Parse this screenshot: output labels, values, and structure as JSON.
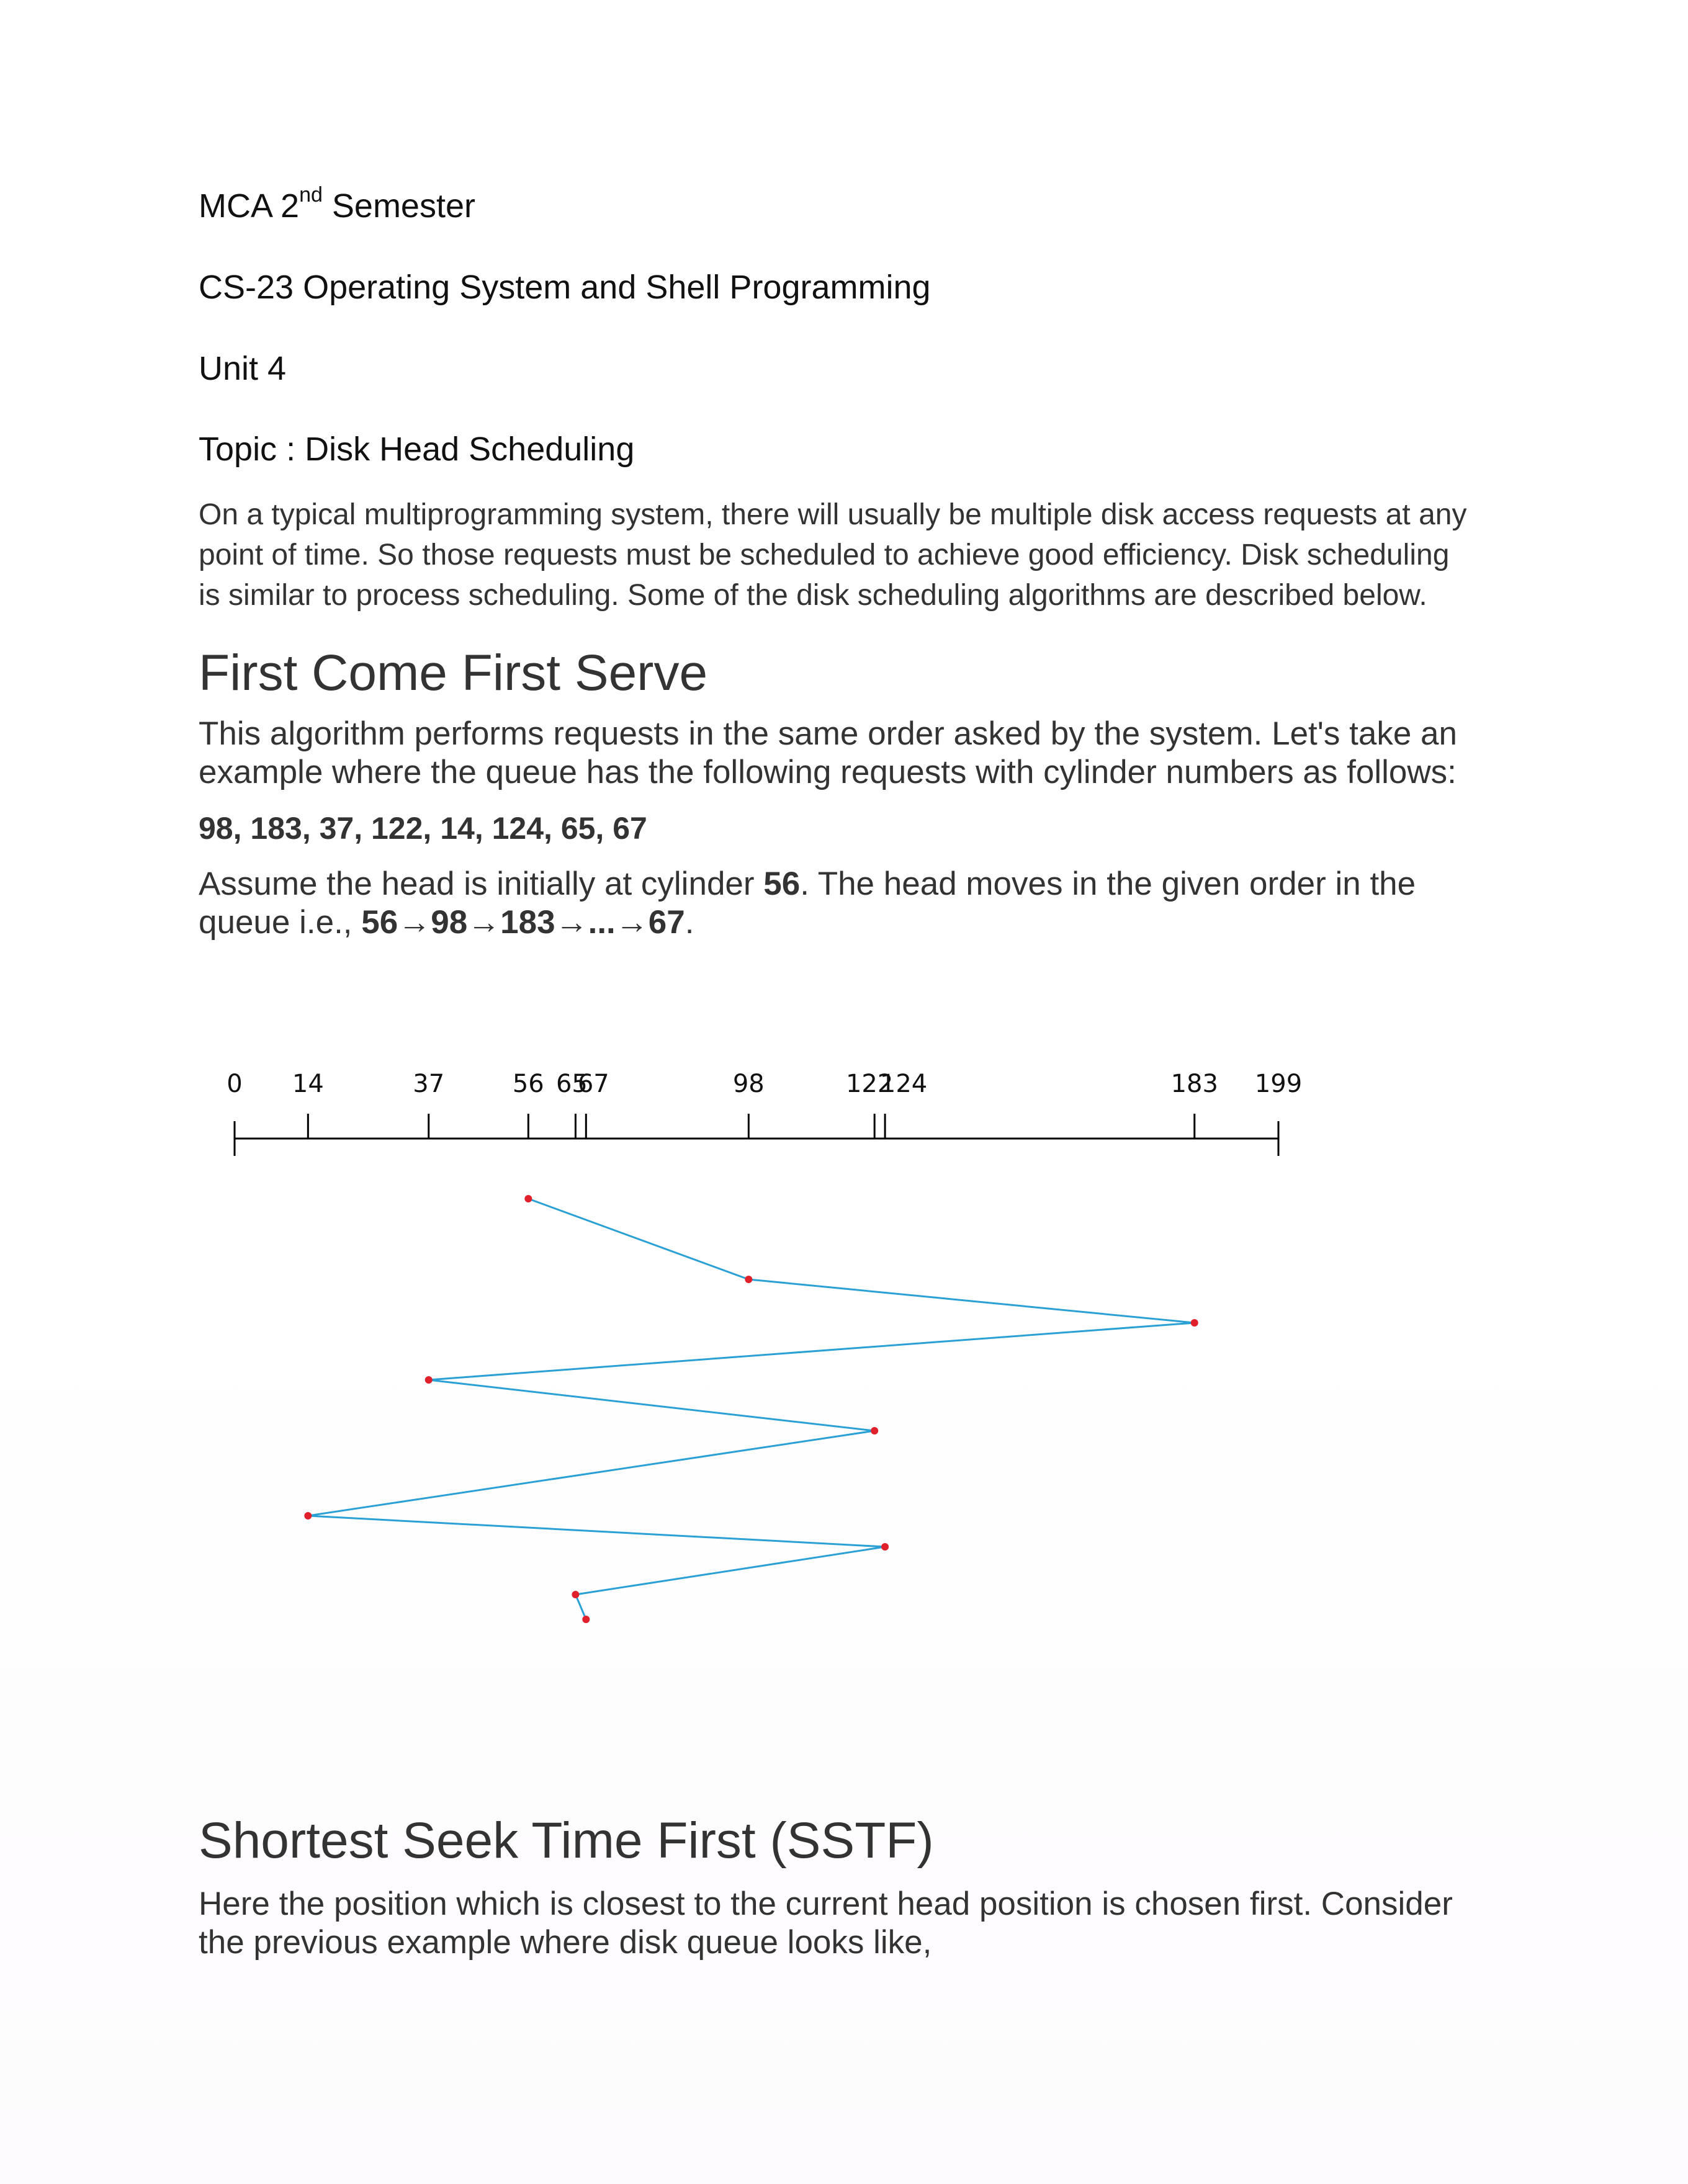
{
  "header": {
    "course_prefix": "MCA 2",
    "course_sup": "nd",
    "course_suffix": " Semester",
    "subject": "CS-23 Operating System and Shell Programming",
    "unit": "Unit 4",
    "topic": "Topic : Disk Head Scheduling"
  },
  "intro": "On a typical multiprogramming system, there will usually be multiple disk access requests at any point of time. So those requests must be scheduled to achieve good efficiency. Disk scheduling is similar to process scheduling. Some of the disk scheduling algorithms are described below.",
  "fcfs": {
    "title": "First Come First Serve",
    "description": "This algorithm performs requests in the same order asked by the system. Let's take an example where the queue has the following requests with cylinder numbers as follows:",
    "queue": "98, 183, 37, 122, 14, 124, 65, 67",
    "assume_pre": "Assume the head is initially at cylinder ",
    "assume_head": "56",
    "assume_mid": ". The head moves in the given order in the queue i.e., ",
    "assume_path": "56→98→183→...→67",
    "assume_end": "."
  },
  "sstf": {
    "title": "Shortest Seek Time First (SSTF)",
    "description": "Here the position which is closest to the current head position is chosen first. Consider the previous example where disk queue looks like,"
  },
  "chart_data": {
    "type": "line",
    "title": "",
    "xlabel": "",
    "ylabel": "",
    "xlim": [
      0,
      199
    ],
    "ticks": [
      0,
      14,
      37,
      56,
      65,
      67,
      98,
      122,
      124,
      183,
      199
    ],
    "tick_labels": [
      "0",
      "14",
      "37",
      "56",
      "65",
      "67",
      "98",
      "122",
      "124",
      "183",
      "199"
    ],
    "series": [
      {
        "values": [
          56,
          98,
          183,
          37,
          122,
          14,
          124,
          65,
          67
        ]
      }
    ],
    "colors": {
      "line": "#2aa0d4",
      "point": "#e0202a",
      "axis": "#000000"
    }
  }
}
